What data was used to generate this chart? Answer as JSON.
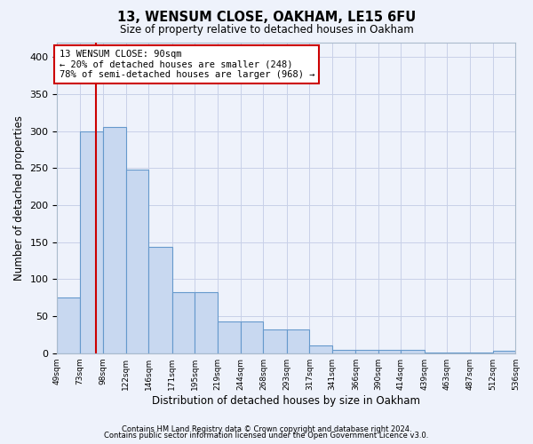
{
  "title": "13, WENSUM CLOSE, OAKHAM, LE15 6FU",
  "subtitle": "Size of property relative to detached houses in Oakham",
  "xlabel": "Distribution of detached houses by size in Oakham",
  "ylabel": "Number of detached properties",
  "footnote1": "Contains HM Land Registry data © Crown copyright and database right 2024.",
  "footnote2": "Contains public sector information licensed under the Open Government Licence v3.0.",
  "bin_edges": [
    49,
    73,
    98,
    122,
    146,
    171,
    195,
    219,
    244,
    268,
    293,
    317,
    341,
    366,
    390,
    414,
    439,
    463,
    487,
    512,
    536
  ],
  "bar_heights": [
    75,
    300,
    305,
    248,
    143,
    83,
    83,
    43,
    43,
    32,
    32,
    10,
    5,
    5,
    5,
    5,
    1,
    1,
    1,
    3
  ],
  "property_size": 90,
  "annotation_title": "13 WENSUM CLOSE: 90sqm",
  "annotation_line1": "← 20% of detached houses are smaller (248)",
  "annotation_line2": "78% of semi-detached houses are larger (968) →",
  "bar_color": "#c8d8f0",
  "bar_edge_color": "#6699cc",
  "vline_color": "#cc0000",
  "annotation_box_color": "#cc0000",
  "background_color": "#eef2fb",
  "grid_color": "#c8d0e8",
  "ylim": [
    0,
    420
  ],
  "yticks": [
    0,
    50,
    100,
    150,
    200,
    250,
    300,
    350,
    400
  ]
}
